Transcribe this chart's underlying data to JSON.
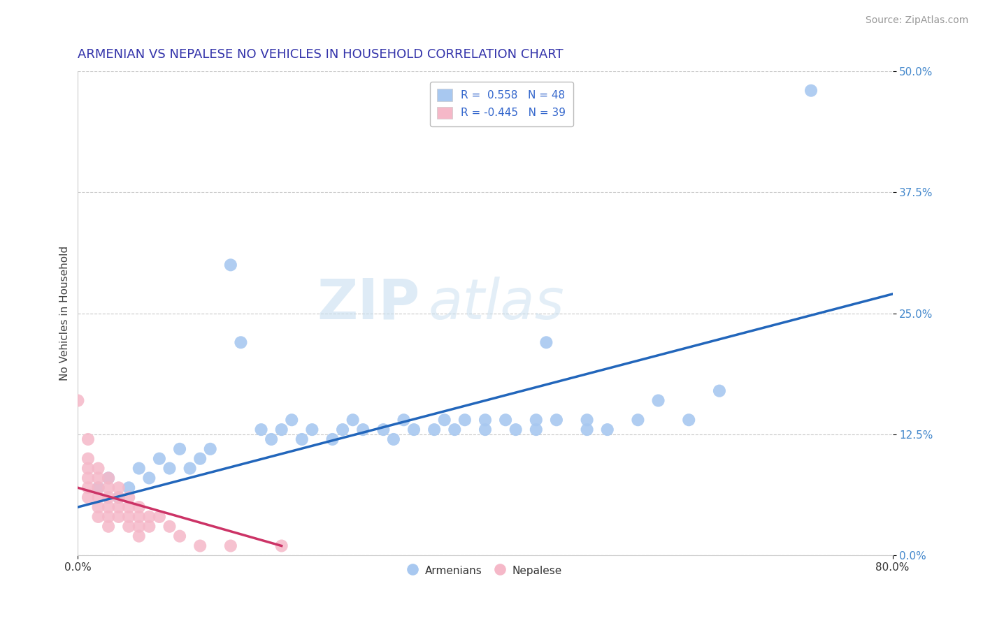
{
  "title": "ARMENIAN VS NEPALESE NO VEHICLES IN HOUSEHOLD CORRELATION CHART",
  "source": "Source: ZipAtlas.com",
  "ylabel": "No Vehicles in Household",
  "xlabel": "",
  "xlim": [
    0.0,
    0.8
  ],
  "ylim": [
    0.0,
    0.5
  ],
  "xtick_labels": [
    "0.0%",
    "80.0%"
  ],
  "ytick_labels": [
    "0.0%",
    "12.5%",
    "25.0%",
    "37.5%",
    "50.0%"
  ],
  "ytick_values": [
    0.0,
    0.125,
    0.25,
    0.375,
    0.5
  ],
  "xtick_values": [
    0.0,
    0.8
  ],
  "grid_color": "#bbbbbb",
  "background_color": "#ffffff",
  "watermark_zip": "ZIP",
  "watermark_atlas": "atlas",
  "legend_r_armenian": "R =  0.558",
  "legend_n_armenian": "N = 48",
  "legend_r_nepalese": "R = -0.445",
  "legend_n_nepalese": "N = 39",
  "armenian_color": "#a8c8f0",
  "nepalese_color": "#f5b8c8",
  "armenian_line_color": "#2266bb",
  "nepalese_line_color": "#cc3366",
  "armenian_line": [
    [
      0.0,
      0.05
    ],
    [
      0.8,
      0.27
    ]
  ],
  "nepalese_line": [
    [
      0.0,
      0.07
    ],
    [
      0.2,
      0.01
    ]
  ],
  "armenian_scatter": [
    [
      0.02,
      0.07
    ],
    [
      0.03,
      0.08
    ],
    [
      0.04,
      0.06
    ],
    [
      0.05,
      0.07
    ],
    [
      0.06,
      0.09
    ],
    [
      0.07,
      0.08
    ],
    [
      0.08,
      0.1
    ],
    [
      0.09,
      0.09
    ],
    [
      0.1,
      0.11
    ],
    [
      0.11,
      0.09
    ],
    [
      0.12,
      0.1
    ],
    [
      0.13,
      0.11
    ],
    [
      0.15,
      0.3
    ],
    [
      0.16,
      0.22
    ],
    [
      0.18,
      0.13
    ],
    [
      0.19,
      0.12
    ],
    [
      0.2,
      0.13
    ],
    [
      0.21,
      0.14
    ],
    [
      0.22,
      0.12
    ],
    [
      0.23,
      0.13
    ],
    [
      0.25,
      0.12
    ],
    [
      0.26,
      0.13
    ],
    [
      0.27,
      0.14
    ],
    [
      0.28,
      0.13
    ],
    [
      0.3,
      0.13
    ],
    [
      0.31,
      0.12
    ],
    [
      0.32,
      0.14
    ],
    [
      0.33,
      0.13
    ],
    [
      0.35,
      0.13
    ],
    [
      0.36,
      0.14
    ],
    [
      0.37,
      0.13
    ],
    [
      0.38,
      0.14
    ],
    [
      0.4,
      0.13
    ],
    [
      0.4,
      0.14
    ],
    [
      0.42,
      0.14
    ],
    [
      0.43,
      0.13
    ],
    [
      0.45,
      0.14
    ],
    [
      0.45,
      0.13
    ],
    [
      0.46,
      0.22
    ],
    [
      0.47,
      0.14
    ],
    [
      0.5,
      0.13
    ],
    [
      0.5,
      0.14
    ],
    [
      0.52,
      0.13
    ],
    [
      0.55,
      0.14
    ],
    [
      0.57,
      0.16
    ],
    [
      0.6,
      0.14
    ],
    [
      0.63,
      0.17
    ],
    [
      0.72,
      0.48
    ]
  ],
  "nepalese_scatter": [
    [
      0.0,
      0.16
    ],
    [
      0.01,
      0.12
    ],
    [
      0.01,
      0.1
    ],
    [
      0.01,
      0.09
    ],
    [
      0.01,
      0.08
    ],
    [
      0.01,
      0.07
    ],
    [
      0.01,
      0.06
    ],
    [
      0.02,
      0.09
    ],
    [
      0.02,
      0.08
    ],
    [
      0.02,
      0.07
    ],
    [
      0.02,
      0.06
    ],
    [
      0.02,
      0.05
    ],
    [
      0.02,
      0.04
    ],
    [
      0.03,
      0.08
    ],
    [
      0.03,
      0.07
    ],
    [
      0.03,
      0.06
    ],
    [
      0.03,
      0.05
    ],
    [
      0.03,
      0.04
    ],
    [
      0.03,
      0.03
    ],
    [
      0.04,
      0.07
    ],
    [
      0.04,
      0.06
    ],
    [
      0.04,
      0.05
    ],
    [
      0.04,
      0.04
    ],
    [
      0.05,
      0.06
    ],
    [
      0.05,
      0.05
    ],
    [
      0.05,
      0.04
    ],
    [
      0.05,
      0.03
    ],
    [
      0.06,
      0.05
    ],
    [
      0.06,
      0.04
    ],
    [
      0.06,
      0.03
    ],
    [
      0.06,
      0.02
    ],
    [
      0.07,
      0.04
    ],
    [
      0.07,
      0.03
    ],
    [
      0.08,
      0.04
    ],
    [
      0.09,
      0.03
    ],
    [
      0.1,
      0.02
    ],
    [
      0.12,
      0.01
    ],
    [
      0.15,
      0.01
    ],
    [
      0.2,
      0.01
    ]
  ],
  "title_fontsize": 13,
  "axis_fontsize": 11,
  "tick_fontsize": 11,
  "legend_fontsize": 11,
  "source_fontsize": 10
}
